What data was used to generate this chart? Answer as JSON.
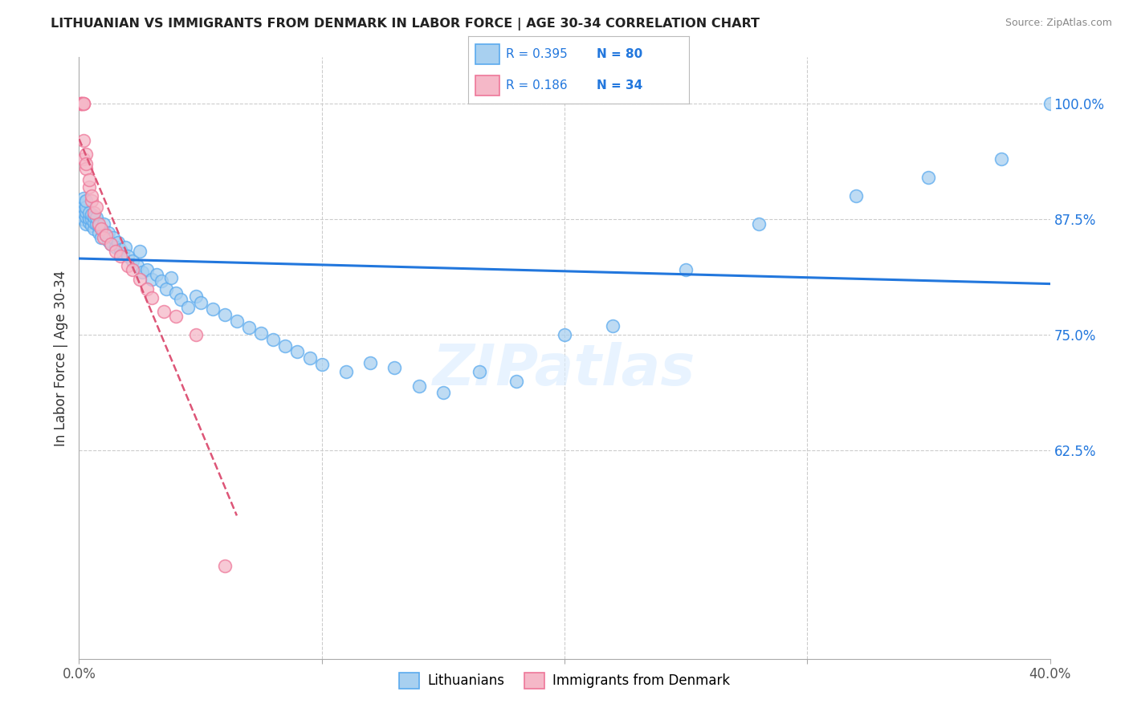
{
  "title": "LITHUANIAN VS IMMIGRANTS FROM DENMARK IN LABOR FORCE | AGE 30-34 CORRELATION CHART",
  "source": "Source: ZipAtlas.com",
  "ylabel": "In Labor Force | Age 30-34",
  "xlim": [
    0.0,
    0.4
  ],
  "ylim": [
    0.4,
    1.05
  ],
  "yticks": [
    0.625,
    0.75,
    0.875,
    1.0
  ],
  "ytick_labels": [
    "62.5%",
    "75.0%",
    "87.5%",
    "100.0%"
  ],
  "blue_R": 0.395,
  "blue_N": 80,
  "pink_R": 0.186,
  "pink_N": 34,
  "blue_color": "#a8d0f0",
  "pink_color": "#f5b8c8",
  "blue_edge_color": "#5aaaee",
  "pink_edge_color": "#ee7799",
  "blue_line_color": "#2277dd",
  "pink_line_color": "#dd5577",
  "legend_label_blue": "Lithuanians",
  "legend_label_pink": "Immigrants from Denmark",
  "blue_x": [
    0.001,
    0.001,
    0.001,
    0.002,
    0.002,
    0.002,
    0.002,
    0.002,
    0.003,
    0.003,
    0.003,
    0.003,
    0.003,
    0.004,
    0.004,
    0.004,
    0.005,
    0.005,
    0.005,
    0.006,
    0.006,
    0.006,
    0.007,
    0.007,
    0.008,
    0.008,
    0.009,
    0.01,
    0.01,
    0.011,
    0.012,
    0.012,
    0.013,
    0.014,
    0.015,
    0.016,
    0.017,
    0.018,
    0.019,
    0.02,
    0.022,
    0.024,
    0.025,
    0.026,
    0.028,
    0.03,
    0.032,
    0.034,
    0.036,
    0.038,
    0.04,
    0.042,
    0.045,
    0.048,
    0.05,
    0.055,
    0.06,
    0.065,
    0.07,
    0.075,
    0.08,
    0.085,
    0.09,
    0.095,
    0.1,
    0.11,
    0.12,
    0.13,
    0.14,
    0.15,
    0.165,
    0.18,
    0.2,
    0.22,
    0.25,
    0.28,
    0.32,
    0.35,
    0.38,
    0.4
  ],
  "blue_y": [
    0.88,
    0.885,
    0.89,
    0.875,
    0.882,
    0.888,
    0.893,
    0.898,
    0.87,
    0.878,
    0.883,
    0.888,
    0.895,
    0.872,
    0.876,
    0.882,
    0.868,
    0.875,
    0.88,
    0.865,
    0.872,
    0.878,
    0.87,
    0.877,
    0.86,
    0.868,
    0.855,
    0.862,
    0.87,
    0.858,
    0.852,
    0.86,
    0.848,
    0.855,
    0.845,
    0.85,
    0.842,
    0.838,
    0.845,
    0.835,
    0.83,
    0.825,
    0.84,
    0.818,
    0.82,
    0.81,
    0.815,
    0.808,
    0.8,
    0.812,
    0.795,
    0.788,
    0.78,
    0.792,
    0.785,
    0.778,
    0.772,
    0.765,
    0.758,
    0.752,
    0.745,
    0.738,
    0.732,
    0.725,
    0.718,
    0.71,
    0.72,
    0.715,
    0.695,
    0.688,
    0.71,
    0.7,
    0.75,
    0.76,
    0.82,
    0.87,
    0.9,
    0.92,
    0.94,
    1.0
  ],
  "pink_x": [
    0.001,
    0.001,
    0.001,
    0.001,
    0.002,
    0.002,
    0.002,
    0.002,
    0.002,
    0.003,
    0.003,
    0.003,
    0.004,
    0.004,
    0.005,
    0.005,
    0.006,
    0.007,
    0.008,
    0.009,
    0.01,
    0.011,
    0.013,
    0.015,
    0.017,
    0.02,
    0.022,
    0.025,
    0.028,
    0.03,
    0.035,
    0.04,
    0.048,
    0.06
  ],
  "pink_y": [
    1.0,
    1.0,
    1.0,
    1.0,
    1.0,
    1.0,
    1.0,
    0.96,
    0.94,
    0.945,
    0.93,
    0.935,
    0.91,
    0.918,
    0.895,
    0.9,
    0.882,
    0.888,
    0.87,
    0.865,
    0.855,
    0.858,
    0.848,
    0.84,
    0.835,
    0.825,
    0.82,
    0.81,
    0.8,
    0.79,
    0.775,
    0.77,
    0.75,
    0.5
  ]
}
